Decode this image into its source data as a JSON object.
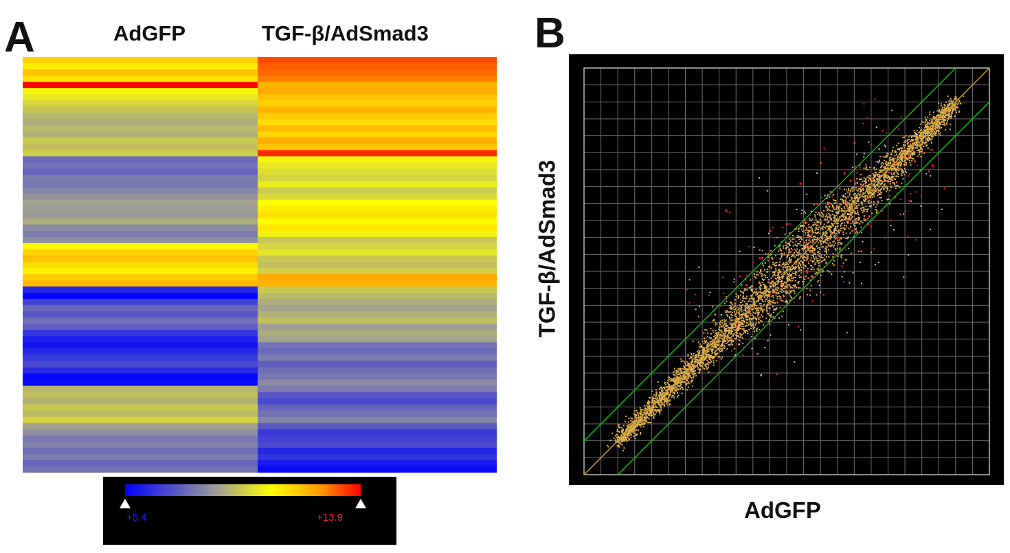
{
  "panel_a": {
    "letter": "A",
    "col_labels": [
      "AdGFP",
      "TGF-β/AdSmad3"
    ],
    "legend": {
      "min_label": "+5.4",
      "max_label": "+13.9",
      "min_color": "#0000ff",
      "max_color": "#ff0000"
    }
  },
  "panel_b": {
    "letter": "B",
    "xlabel": "AdGFP",
    "ylabel": "TGF-β/AdSmad3"
  },
  "colors": {
    "point": "#e0b050",
    "highlight": "#ff2020",
    "fold_line": "#00c000",
    "diag": "#c8a020",
    "grid": "#707070"
  },
  "chart_data": [
    {
      "type": "heatmap",
      "columns": [
        "AdGFP",
        "TGF-β/AdSmad3"
      ],
      "color_scale": {
        "min": 5.4,
        "max": 13.9
      },
      "rows": [
        [
          11.5,
          13.2
        ],
        [
          11.0,
          13.0
        ],
        [
          11.8,
          12.9
        ],
        [
          11.2,
          12.7
        ],
        [
          13.8,
          12.0
        ],
        [
          10.5,
          12.2
        ],
        [
          10.2,
          11.8
        ],
        [
          9.8,
          11.5
        ],
        [
          9.5,
          12.0
        ],
        [
          9.2,
          11.6
        ],
        [
          9.0,
          11.3
        ],
        [
          9.3,
          11.9
        ],
        [
          9.1,
          11.4
        ],
        [
          9.6,
          12.1
        ],
        [
          9.4,
          11.7
        ],
        [
          9.7,
          13.5
        ],
        [
          7.6,
          10.5
        ],
        [
          7.8,
          10.2
        ],
        [
          7.5,
          10.0
        ],
        [
          8.0,
          9.8
        ],
        [
          7.9,
          10.3
        ],
        [
          8.2,
          9.6
        ],
        [
          8.5,
          9.9
        ],
        [
          8.8,
          10.6
        ],
        [
          8.7,
          11.0
        ],
        [
          8.6,
          11.2
        ],
        [
          9.0,
          10.7
        ],
        [
          8.3,
          11.1
        ],
        [
          8.0,
          10.4
        ],
        [
          8.4,
          9.5
        ],
        [
          10.8,
          9.8
        ],
        [
          11.5,
          10.1
        ],
        [
          11.8,
          9.6
        ],
        [
          11.3,
          9.4
        ],
        [
          10.9,
          9.7
        ],
        [
          11.6,
          12.2
        ],
        [
          11.9,
          12.0
        ],
        [
          6.2,
          9.6
        ],
        [
          5.5,
          9.3
        ],
        [
          6.8,
          9.0
        ],
        [
          7.6,
          8.8
        ],
        [
          7.2,
          9.1
        ],
        [
          7.8,
          9.4
        ],
        [
          7.4,
          8.7
        ],
        [
          6.5,
          9.0
        ],
        [
          6.0,
          8.8
        ],
        [
          5.8,
          7.8
        ],
        [
          6.2,
          7.6
        ],
        [
          6.6,
          8.0
        ],
        [
          6.9,
          7.4
        ],
        [
          6.3,
          7.7
        ],
        [
          5.5,
          7.9
        ],
        [
          5.6,
          8.3
        ],
        [
          9.2,
          8.0
        ],
        [
          9.4,
          7.2
        ],
        [
          9.1,
          6.9
        ],
        [
          9.6,
          7.5
        ],
        [
          9.3,
          7.8
        ],
        [
          9.8,
          8.2
        ],
        [
          8.8,
          7.3
        ],
        [
          8.4,
          6.6
        ],
        [
          7.9,
          6.8
        ],
        [
          8.1,
          7.0
        ],
        [
          7.7,
          6.2
        ],
        [
          8.0,
          6.5
        ],
        [
          7.5,
          5.9
        ],
        [
          7.8,
          5.6
        ]
      ]
    },
    {
      "type": "scatter",
      "xlabel": "AdGFP",
      "ylabel": "TGF-β/AdSmad3",
      "xlim": [
        4,
        16
      ],
      "ylim": [
        4,
        16
      ],
      "grid": true,
      "fold_lines": [
        {
          "offset": 1
        },
        {
          "offset": -1
        }
      ],
      "series": [
        {
          "points_yellow": [
            [
              5.0,
              5.1
            ],
            [
              5.4,
              5.3
            ],
            [
              5.8,
              5.9
            ],
            [
              6.2,
              6.1
            ],
            [
              6.6,
              6.8
            ],
            [
              7.0,
              6.9
            ],
            [
              7.4,
              7.6
            ],
            [
              7.8,
              7.7
            ],
            [
              8.2,
              8.4
            ],
            [
              8.6,
              8.5
            ],
            [
              9.0,
              9.2
            ],
            [
              9.4,
              9.3
            ],
            [
              9.8,
              10.0
            ],
            [
              10.2,
              10.1
            ],
            [
              10.6,
              10.8
            ],
            [
              11.0,
              10.9
            ],
            [
              11.4,
              11.6
            ],
            [
              11.8,
              11.7
            ],
            [
              12.2,
              12.4
            ],
            [
              12.6,
              12.5
            ],
            [
              13.0,
              13.2
            ],
            [
              13.4,
              13.3
            ],
            [
              13.8,
              14.0
            ],
            [
              14.2,
              14.1
            ],
            [
              14.6,
              14.7
            ],
            [
              15.0,
              15.1
            ]
          ]
        },
        {
          "points_red": [
            [
              8.2,
              11.8
            ],
            [
              9.2,
              10.4
            ],
            [
              9.8,
              9.2
            ],
            [
              10.4,
              12.6
            ],
            [
              11.0,
              13.2
            ],
            [
              10.9,
              12.0
            ],
            [
              11.5,
              11.0
            ],
            [
              12.0,
              13.8
            ],
            [
              12.2,
              10.6
            ],
            [
              12.8,
              11.8
            ],
            [
              13.2,
              12.2
            ],
            [
              10.6,
              10.0
            ],
            [
              9.5,
              11.2
            ],
            [
              11.7,
              12.9
            ],
            [
              12.4,
              11.4
            ],
            [
              8.8,
              9.6
            ],
            [
              13.6,
              13.4
            ],
            [
              10.0,
              11.4
            ]
          ]
        }
      ]
    }
  ]
}
